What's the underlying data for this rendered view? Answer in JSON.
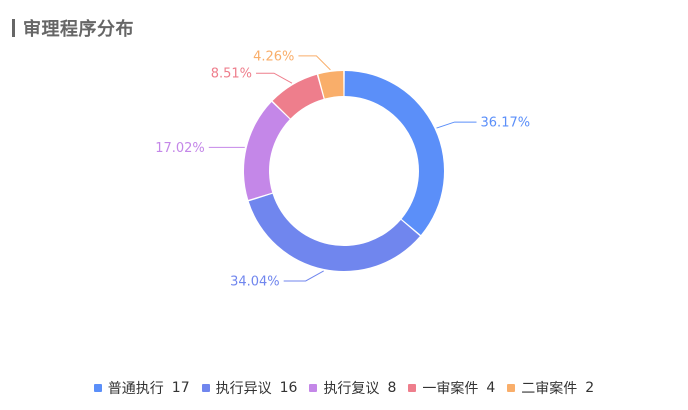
{
  "title": "审理程序分布",
  "chart_data": {
    "type": "pie",
    "title": "审理程序分布",
    "donut": true,
    "legend_position": "bottom",
    "series": [
      {
        "name": "普通执行",
        "value": 17,
        "percent_label": "36.17%",
        "color": "#5B8FF9"
      },
      {
        "name": "执行异议",
        "value": 16,
        "percent_label": "34.04%",
        "color": "#7086EE"
      },
      {
        "name": "执行复议",
        "value": 8,
        "percent_label": "17.02%",
        "color": "#C487E8"
      },
      {
        "name": "一审案件",
        "value": 4,
        "percent_label": "8.51%",
        "color": "#EE7E8C"
      },
      {
        "name": "二审案件",
        "value": 2,
        "percent_label": "4.26%",
        "color": "#F9AE6A"
      }
    ]
  }
}
